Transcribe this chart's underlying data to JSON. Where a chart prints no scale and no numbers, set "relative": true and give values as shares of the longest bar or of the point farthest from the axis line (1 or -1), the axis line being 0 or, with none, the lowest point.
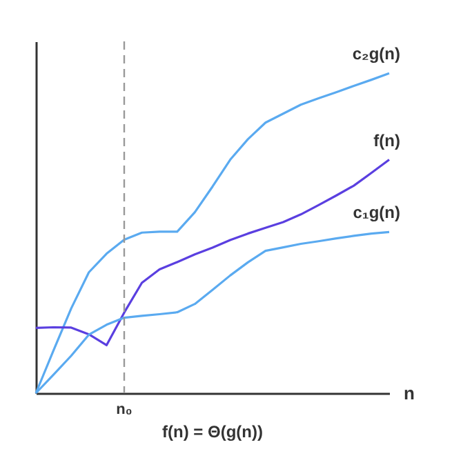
{
  "chart_data": {
    "type": "line",
    "relative": true,
    "title": "f(n) = Θ(g(n))",
    "xlabel": "n",
    "legend": false,
    "marker": "none",
    "line_style": "solid",
    "categories": [
      null,
      null,
      null,
      null,
      null,
      null,
      null,
      null,
      null,
      null,
      null,
      null,
      null,
      null,
      null,
      null,
      null,
      null,
      null,
      null,
      null
    ],
    "annotations": [
      "n₀"
    ],
    "series": [
      {
        "name": "c₂g(n)",
        "color": "#5aaaf0",
        "values": [
          0,
          0.134,
          0.265,
          0.378,
          0.436,
          0.48,
          0.502,
          0.505,
          0.505,
          0.566,
          0.646,
          0.73,
          0.794,
          0.846,
          0.874,
          0.902,
          0.922,
          0.941,
          0.961,
          0.98,
          1.0
        ]
      },
      {
        "name": "f(n)",
        "color": "#5a3fe0",
        "values": [
          0.204,
          0.206,
          0.205,
          0.184,
          0.15,
          0.252,
          0.345,
          0.387,
          0.41,
          0.434,
          0.455,
          0.479,
          0.499,
          0.517,
          0.535,
          0.559,
          0.588,
          0.618,
          0.649,
          0.689,
          0.73
        ]
      },
      {
        "name": "c₁g(n)",
        "color": "#5aaaf0",
        "values": [
          0,
          0.058,
          0.117,
          0.183,
          0.214,
          0.236,
          0.242,
          0.247,
          0.253,
          0.279,
          0.323,
          0.368,
          0.409,
          0.445,
          0.456,
          0.467,
          0.475,
          0.484,
          0.492,
          0.499,
          0.504
        ]
      }
    ]
  }
}
